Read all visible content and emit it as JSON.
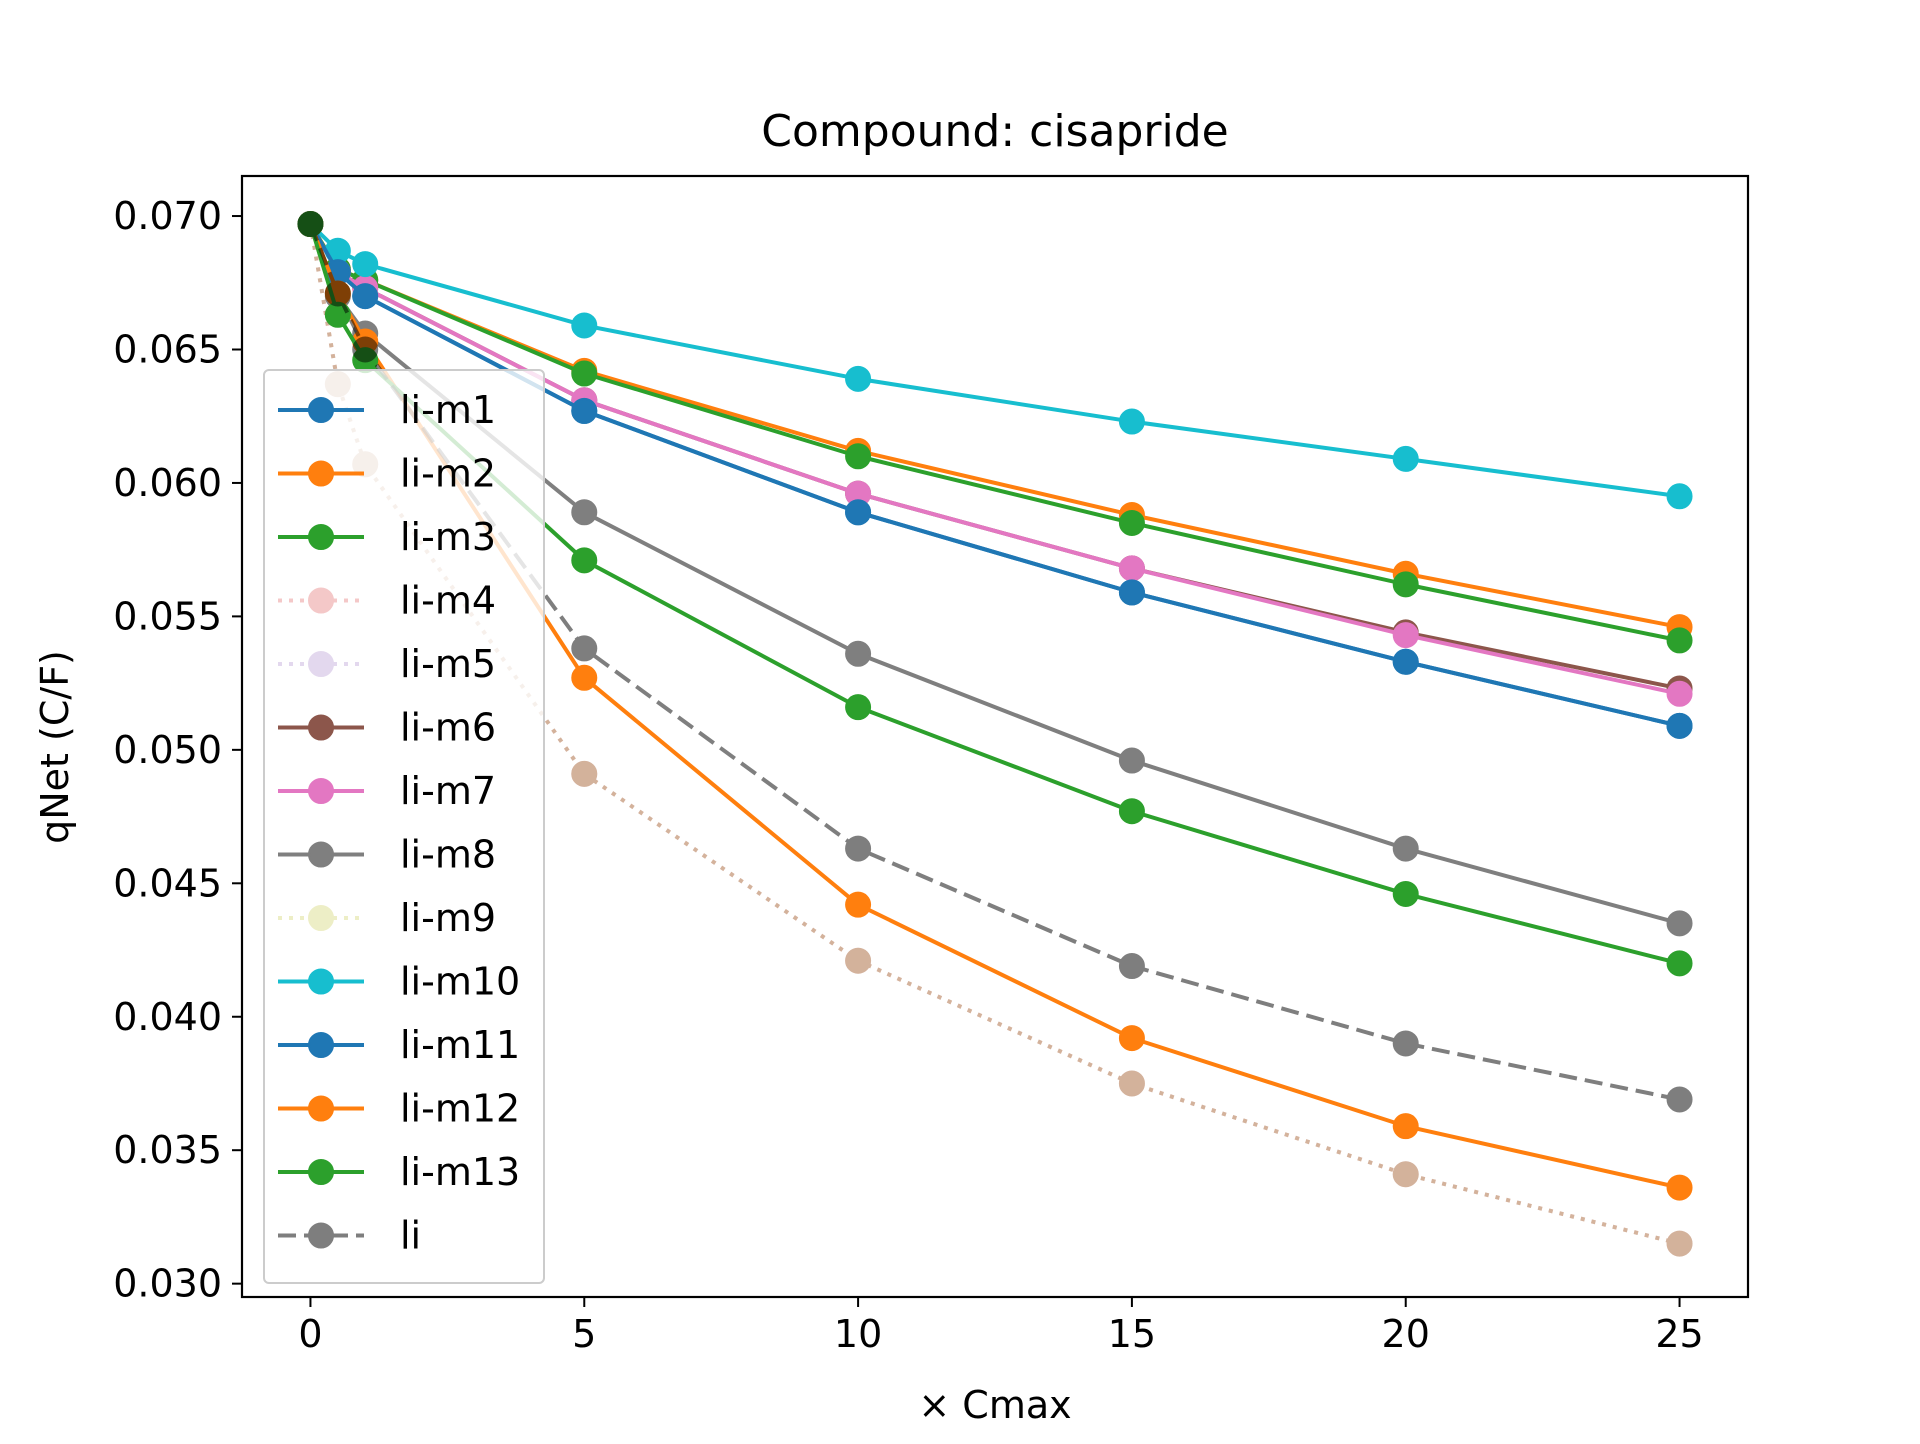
{
  "chart_data": {
    "type": "line",
    "title": "Compound: cisapride",
    "xlabel": "× Cmax",
    "ylabel": "qNet (C/F)",
    "xlim": [
      -1.25,
      26.25
    ],
    "ylim": [
      0.0295,
      0.0715
    ],
    "xticks": [
      0,
      5,
      10,
      15,
      20,
      25
    ],
    "xtick_labels": [
      "0",
      "5",
      "10",
      "15",
      "20",
      "25"
    ],
    "yticks": [
      0.03,
      0.035,
      0.04,
      0.045,
      0.05,
      0.055,
      0.06,
      0.065,
      0.07
    ],
    "ytick_labels": [
      "0.030",
      "0.035",
      "0.040",
      "0.045",
      "0.050",
      "0.055",
      "0.060",
      "0.065",
      "0.070"
    ],
    "grid": false,
    "legend_position": "left",
    "x": [
      0,
      0.5,
      1,
      5,
      10,
      15,
      20,
      25
    ],
    "series": [
      {
        "name": "li-m1",
        "color": "#1f77b4",
        "style": "solid",
        "alpha": 1.0,
        "values": [
          0.0697,
          0.0679,
          0.067,
          0.0627,
          0.0589,
          0.0559,
          0.0533,
          0.0509
        ]
      },
      {
        "name": "li-m2",
        "color": "#ff7f0e",
        "style": "solid",
        "alpha": 1.0,
        "values": [
          0.0697,
          0.068,
          0.0676,
          0.0642,
          0.0612,
          0.0588,
          0.0566,
          0.0546
        ]
      },
      {
        "name": "li-m3",
        "color": "#2ca02c",
        "style": "solid",
        "alpha": 1.0,
        "values": [
          0.0697,
          0.068,
          0.0676,
          0.0641,
          0.061,
          0.0585,
          0.0562,
          0.0541
        ]
      },
      {
        "name": "li-m4",
        "color": "#d62728",
        "style": "dotted",
        "alpha": 0.25,
        "values": [
          0.0697,
          0.0637,
          0.0607,
          0.0491,
          0.0421,
          0.0375,
          0.0341,
          0.0315
        ]
      },
      {
        "name": "li-m5",
        "color": "#9467bd",
        "style": "dotted",
        "alpha": 0.25,
        "values": [
          0.0697,
          0.0637,
          0.0607,
          0.0491,
          0.0421,
          0.0375,
          0.0341,
          0.0315
        ]
      },
      {
        "name": "li-m6",
        "color": "#8c564b",
        "style": "solid",
        "alpha": 1.0,
        "values": [
          0.0697,
          0.0679,
          0.0673,
          0.0631,
          0.0596,
          0.0568,
          0.0544,
          0.0523
        ]
      },
      {
        "name": "li-m7",
        "color": "#e377c2",
        "style": "solid",
        "alpha": 1.0,
        "values": [
          0.0697,
          0.0679,
          0.0673,
          0.0631,
          0.0596,
          0.0568,
          0.0543,
          0.0521
        ]
      },
      {
        "name": "li-m8",
        "color": "#7f7f7f",
        "style": "solid",
        "alpha": 1.0,
        "values": [
          0.0697,
          0.067,
          0.0656,
          0.0589,
          0.0536,
          0.0496,
          0.0463,
          0.0435
        ]
      },
      {
        "name": "li-m9",
        "color": "#bcbd22",
        "style": "dotted",
        "alpha": 0.25,
        "values": [
          0.0697,
          0.0637,
          0.0607,
          0.0491,
          0.0421,
          0.0375,
          0.0341,
          0.0315
        ]
      },
      {
        "name": "li-m10",
        "color": "#17becf",
        "style": "solid",
        "alpha": 1.0,
        "values": [
          0.0697,
          0.0687,
          0.0682,
          0.0659,
          0.0639,
          0.0623,
          0.0609,
          0.0595
        ]
      },
      {
        "name": "li-m11",
        "color": "#1f77b4",
        "style": "solid",
        "alpha": 1.0,
        "values": [
          0.0697,
          0.0679,
          0.067,
          0.0627,
          0.0589,
          0.0559,
          0.0533,
          0.0509
        ]
      },
      {
        "name": "li-m12",
        "color": "#ff7f0e",
        "style": "solid",
        "alpha": 1.0,
        "values": [
          0.0697,
          0.0671,
          0.0653,
          0.0527,
          0.0442,
          0.0392,
          0.0359,
          0.0336
        ]
      },
      {
        "name": "li-m13",
        "color": "#2ca02c",
        "style": "solid",
        "alpha": 1.0,
        "values": [
          0.0697,
          0.0663,
          0.0646,
          0.0571,
          0.0516,
          0.0477,
          0.0446,
          0.042
        ]
      },
      {
        "name": "li",
        "color": "#000000",
        "style": "dashed",
        "alpha": 0.5,
        "values": [
          0.0697,
          0.0671,
          0.065,
          0.0538,
          0.0463,
          0.0419,
          0.039,
          0.0369
        ]
      }
    ]
  }
}
